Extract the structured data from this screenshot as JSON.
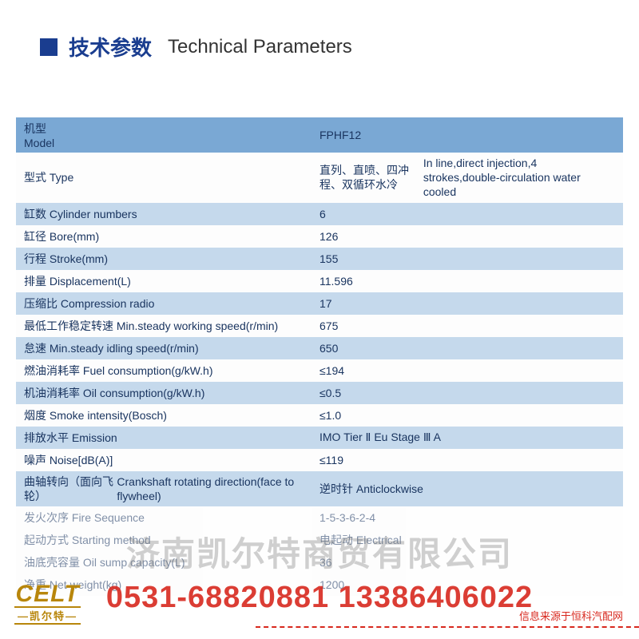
{
  "header": {
    "title_cn": "技术参数",
    "title_en": "Technical Parameters"
  },
  "table": {
    "header_row": {
      "label_cn": "机型",
      "label_en": "Model",
      "value": "FPHF12"
    },
    "rows": [
      {
        "label": "型式 Type",
        "value_cn": "直列、直喷、四冲程、双循环水冷",
        "value_en": "In line,direct injection,4 strokes,double-circulation water cooled",
        "style": "plain",
        "multiline_value": true
      },
      {
        "label": "缸数 Cylinder numbers",
        "value": "6",
        "style": "alt"
      },
      {
        "label": "缸径 Bore(mm)",
        "value": "126",
        "style": "plain"
      },
      {
        "label": "行程 Stroke(mm)",
        "value": "155",
        "style": "alt"
      },
      {
        "label": "排量 Displacement(L)",
        "value": "11.596",
        "style": "plain"
      },
      {
        "label": "压缩比 Compression radio",
        "value": "17",
        "style": "alt"
      },
      {
        "label": "最低工作稳定转速 Min.steady working speed(r/min)",
        "value": "675",
        "style": "plain"
      },
      {
        "label": "怠速 Min.steady idling speed(r/min)",
        "value": "650",
        "style": "alt"
      },
      {
        "label": "燃油消耗率 Fuel consumption(g/kW.h)",
        "value": "≤194",
        "style": "plain"
      },
      {
        "label": "机油消耗率 Oil consumption(g/kW.h)",
        "value": "≤0.5",
        "style": "alt"
      },
      {
        "label": "烟度 Smoke intensity(Bosch)",
        "value": "≤1.0",
        "style": "plain"
      },
      {
        "label": "排放水平 Emission",
        "value": "IMO Tier Ⅱ Eu Stage Ⅲ A",
        "style": "alt"
      },
      {
        "label": "噪声 Noise[dB(A)]",
        "value": "≤119",
        "style": "plain"
      },
      {
        "label_cn": "曲轴转向（面向飞轮）",
        "label_en": "Crankshaft rotating direction(face to flywheel)",
        "value": "逆时针 Anticlockwise",
        "style": "alt",
        "multiline_label": true
      },
      {
        "label": "发火次序 Fire Sequence",
        "value": "1-5-3-6-2-4",
        "style": "faded"
      },
      {
        "label": "起动方式 Starting method",
        "value": "电起动 Electrical",
        "style": "faded"
      },
      {
        "label": "油底壳容量 Oil sump capacity(L)",
        "value": "36",
        "style": "faded"
      },
      {
        "label": "净重 Net weight(kg)",
        "value": "1200",
        "style": "faded"
      }
    ]
  },
  "watermark": {
    "company": "济南凯尔特商贸有限公司",
    "phones": "0531-68820881  13386406022"
  },
  "logo": {
    "main": "CELT",
    "sub": "—凯尔特—"
  },
  "footnote": "信息来源于恒科汽配网",
  "colors": {
    "header_blue": "#1a3d8f",
    "row_header_bg": "#7aa8d4",
    "row_alt_bg": "#c5d9ec",
    "row_plain_bg": "#fdfdfd",
    "text_dark": "#1a3560",
    "accent_red": "#d8281e",
    "logo_gold": "#b8860b"
  }
}
